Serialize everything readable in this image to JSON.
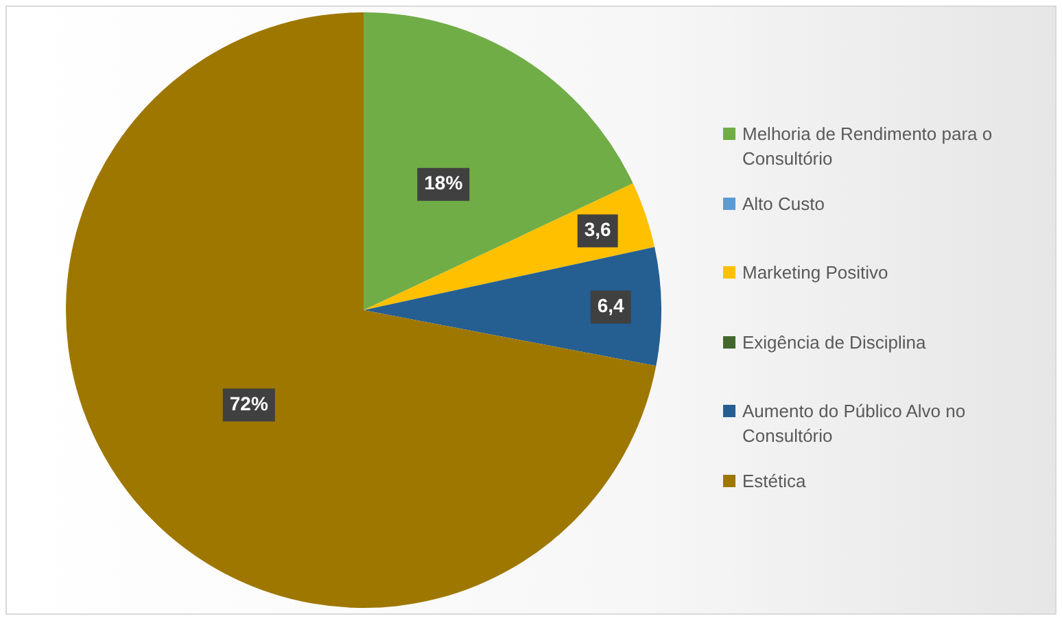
{
  "chart_data": {
    "type": "pie",
    "categories": [
      "Melhoria de Rendimento para o Consultório",
      "Alto Custo",
      "Marketing Positivo",
      "Exigência de Disciplina",
      "Aumento do Público Alvo no Consultório",
      "Estética"
    ],
    "values": [
      18,
      0,
      3.6,
      0,
      6.4,
      72
    ],
    "colors": [
      "#70ad47",
      "#5b9bd5",
      "#ffc000",
      "#43682b",
      "#255e91",
      "#9e7700"
    ],
    "value_labels": [
      "18%",
      null,
      "3,6",
      null,
      "6,4",
      "72%"
    ],
    "legend": "right"
  }
}
